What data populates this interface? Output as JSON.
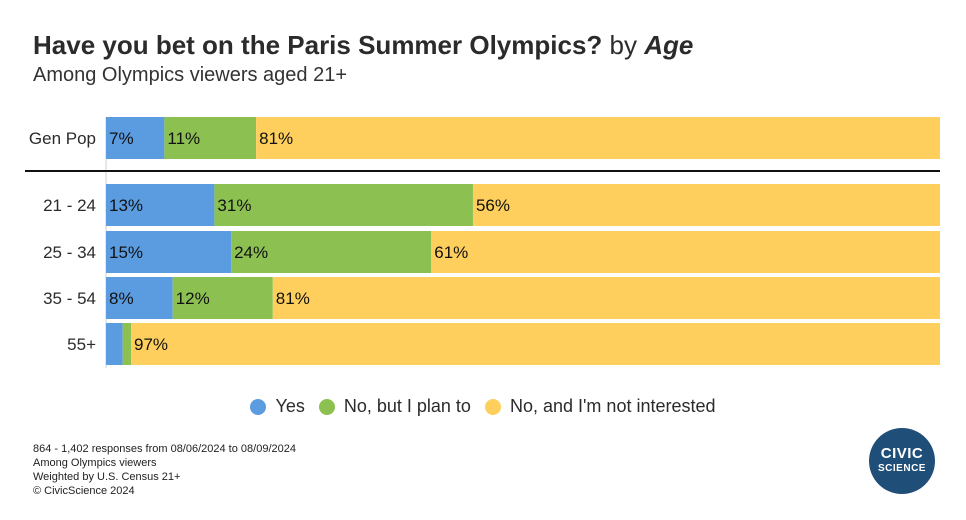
{
  "title": {
    "main": "Have you bet on the Paris Summer Olympics?",
    "by": "by",
    "group": "Age"
  },
  "subtitle": "Among Olympics viewers aged 21+",
  "colors": {
    "yes": "#5b9be0",
    "plan": "#8cc152",
    "not": "#fecf5c"
  },
  "chart_data": {
    "type": "bar",
    "orientation": "horizontal",
    "stacked": true,
    "categories": [
      "Gen Pop",
      "21 - 24",
      "25 - 34",
      "35 - 54",
      "55+"
    ],
    "series": [
      {
        "name": "Yes",
        "values": [
          7,
          13,
          15,
          8,
          2
        ]
      },
      {
        "name": "No, but I plan to",
        "values": [
          11,
          31,
          24,
          12,
          1
        ]
      },
      {
        "name": "No, and I'm not interested",
        "values": [
          81,
          56,
          61,
          81,
          97
        ]
      }
    ],
    "data_labels": [
      [
        "7%",
        "11%",
        "81%"
      ],
      [
        "13%",
        "31%",
        "56%"
      ],
      [
        "15%",
        "24%",
        "61%"
      ],
      [
        "8%",
        "12%",
        "81%"
      ],
      [
        "",
        "",
        "97%"
      ]
    ],
    "xlim": [
      0,
      100
    ],
    "legend_position": "bottom"
  },
  "footer": [
    "864 - 1,402 responses from 08/06/2024 to 08/09/2024",
    "Among Olympics viewers",
    "Weighted by U.S. Census 21+",
    "© CivicScience 2024"
  ],
  "logo": {
    "line1": "CIVIC",
    "line2": "SCIENCE"
  }
}
